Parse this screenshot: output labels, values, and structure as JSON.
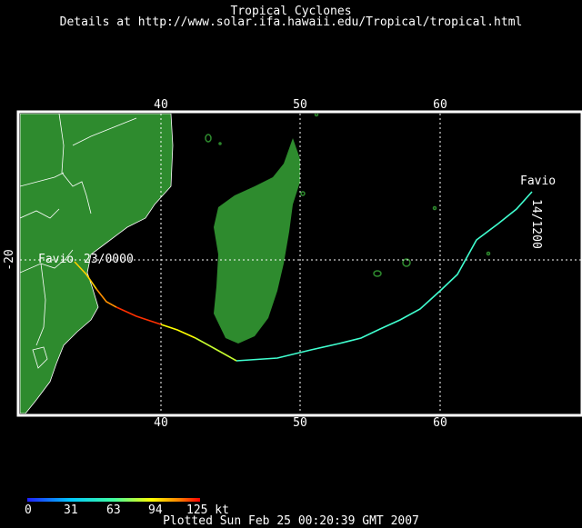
{
  "header": {
    "title": "Tropical Cyclones",
    "subtitle": "Details at http://www.solar.ifa.hawaii.edu/Tropical/tropical.html"
  },
  "map": {
    "lon_ticks": [
      "40",
      "50",
      "60",
      "40",
      "50",
      "60"
    ],
    "lat_tick": "-20",
    "storm": {
      "name_start": "Favio",
      "name_end": "Favio",
      "start_label": "14/1200",
      "end_label": "23/0000"
    },
    "colors": {
      "land": "#2e8b2e",
      "coast": "#ffffff",
      "grid": "#ffffff",
      "background": "#000000"
    }
  },
  "legend": {
    "ticks": [
      "0",
      "31",
      "63",
      "94",
      "125 kt"
    ]
  },
  "footer": {
    "plotted": "Plotted Sun Feb 25 00:20:39 GMT 2007"
  }
}
